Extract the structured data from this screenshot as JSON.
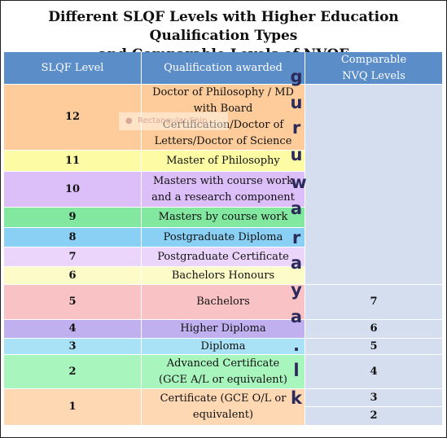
{
  "title_line1": "Different SLQF Levels with Higher Education Qualification Types",
  "title_line2": "and Comparable Levels of NVQF",
  "headers": {
    "level": "SLQF Level",
    "qualification": "Qualification awarded",
    "nvq": "Comparable NVQ Levels"
  },
  "rows": [
    {
      "level": "12",
      "qualification": "Doctor of Philosophy / MD with Board Certification/Doctor of Letters/Doctor of Science",
      "color": "#fdcc9a"
    },
    {
      "level": "11",
      "qualification": "Master of Philosophy",
      "color": "#fdfca4"
    },
    {
      "level": "10",
      "qualification": "Masters with course work and a research component",
      "color": "#dcbef8"
    },
    {
      "level": "9",
      "qualification": "Masters by course work",
      "color": "#82e8a0"
    },
    {
      "level": "8",
      "qualification": "Postgraduate Diploma",
      "color": "#8ad0f4"
    },
    {
      "level": "7",
      "qualification": "Postgraduate Certificate",
      "color": "#ecd5fb"
    },
    {
      "level": "6",
      "qualification": "Bachelors Honours",
      "color": "#fdfbc8"
    },
    {
      "level": "5",
      "qualification": "Bachelors",
      "color": "#f9c3c6"
    },
    {
      "level": "4",
      "qualification": "Higher Diploma",
      "color": "#c0b0f0"
    },
    {
      "level": "3",
      "qualification": "Diploma",
      "color": "#a9e2f7"
    },
    {
      "level": "2",
      "qualification": "Advanced Certificate (GCE A/L or equivalent)",
      "color": "#a8f5bd"
    },
    {
      "level": "1",
      "qualification": "Certificate (GCE O/L or equivalent)",
      "color": "#fdd8b2"
    }
  ],
  "nvq_levels": [
    "7",
    "6",
    "5",
    "4",
    "3",
    "2"
  ],
  "watermark_letters": [
    "g",
    "u",
    "r",
    "u",
    "w",
    "a",
    "r",
    "a",
    "y",
    "a",
    ".",
    "l",
    "k"
  ],
  "ghost_label": "Rectangular Snip",
  "header_color": "#5b8dc8",
  "nvq_color": "#d4deee"
}
